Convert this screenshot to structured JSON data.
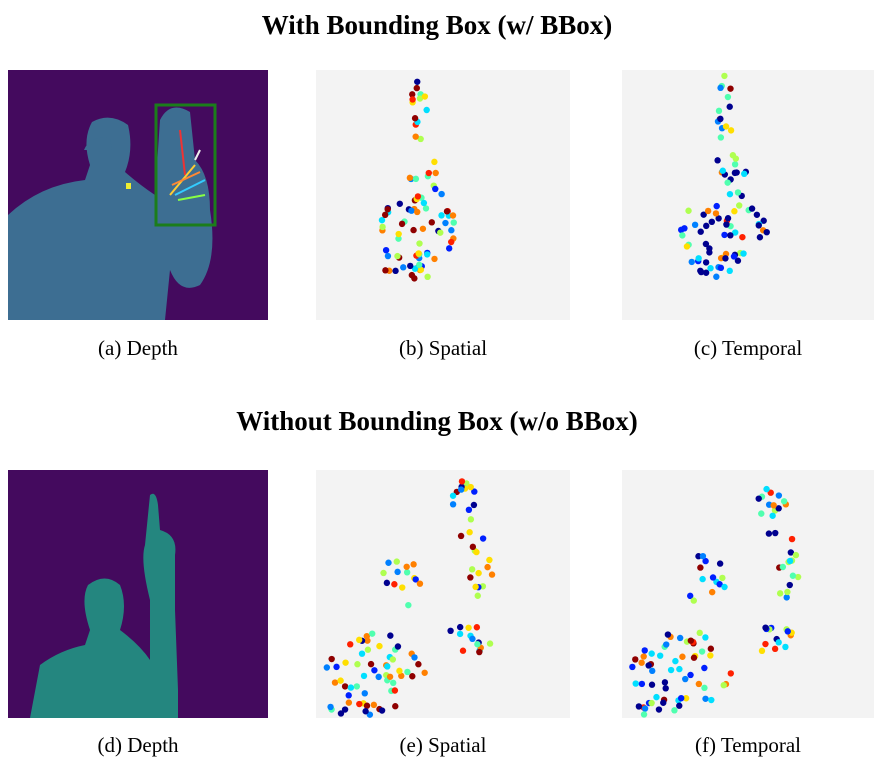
{
  "sections": [
    {
      "title": "With Bounding Box (w/ BBox)",
      "panels": [
        {
          "caption": "(a) Depth"
        },
        {
          "caption": "(b) Spatial"
        },
        {
          "caption": "(c) Temporal"
        }
      ]
    },
    {
      "title": "Without Bounding Box (w/o BBox)",
      "panels": [
        {
          "caption": "(d) Depth"
        },
        {
          "caption": "(e) Spatial"
        },
        {
          "caption": "(f) Temporal"
        }
      ]
    }
  ]
}
